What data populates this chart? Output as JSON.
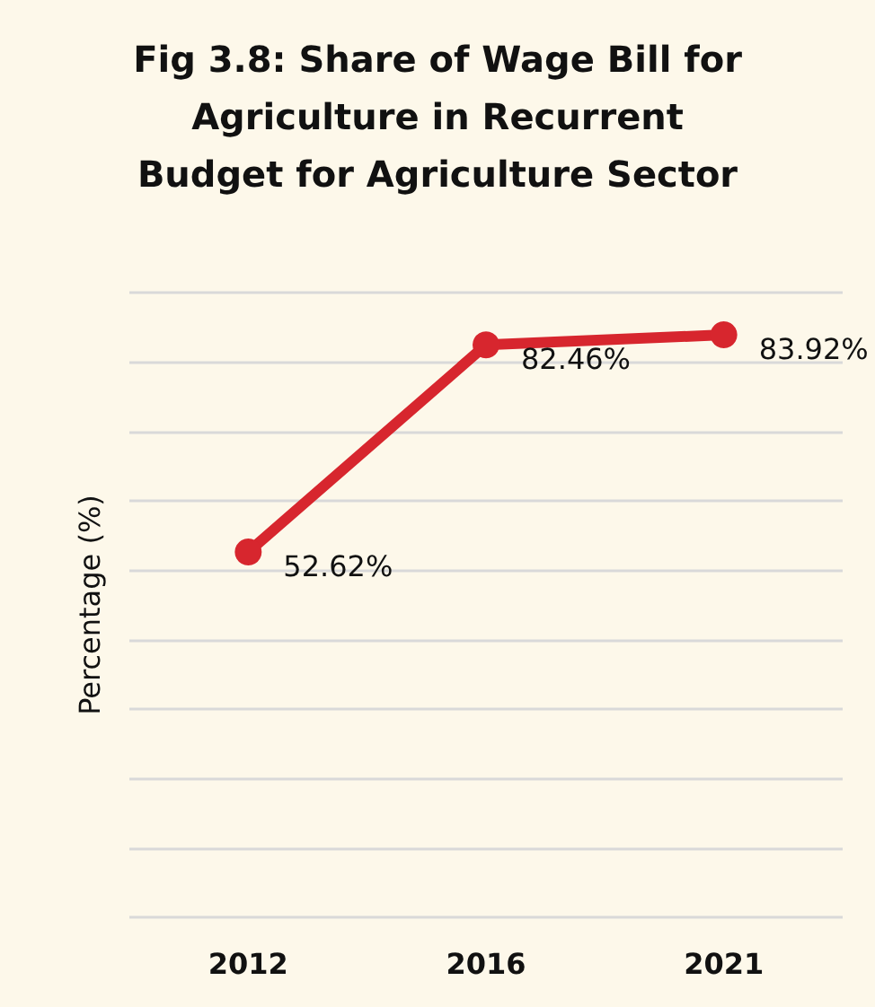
{
  "chart_data": {
    "type": "line",
    "title": "Fig 3.8: Share of Wage Bill for\nAgriculture in Recurrent\nBudget for Agriculture Sector",
    "ylabel": "Percentage (%)",
    "categories": [
      "2012",
      "2016",
      "2021"
    ],
    "series": [
      {
        "color": "#d7262e",
        "values": [
          52.62,
          82.46,
          83.92
        ],
        "value_labels": [
          "52.62%",
          "82.46%",
          "83.92%"
        ]
      }
    ],
    "data_labels": true,
    "tick_labels": "x",
    "grid": "y",
    "marker": "circle",
    "line_style": "solid"
  }
}
